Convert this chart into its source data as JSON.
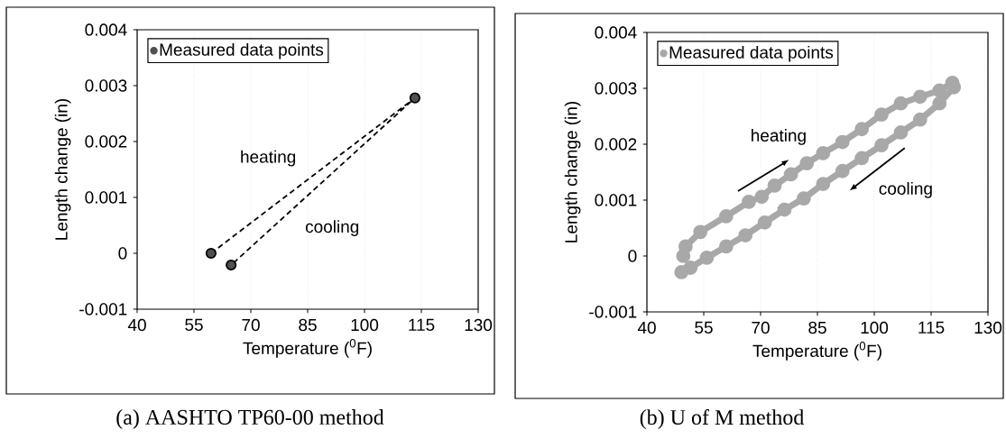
{
  "chart_data": [
    {
      "type": "line",
      "title": "(a) AASHTO TP60-00 method",
      "xlabel": "Temperature ($^{0}$F)",
      "ylabel": "Length change (in)",
      "line_style": "dashed",
      "marker": "circle",
      "grid": "x",
      "legend": "top left",
      "xlim": [
        40,
        130
      ],
      "ylim": [
        -0.001,
        0.004
      ],
      "xticks": [
        40,
        55,
        70,
        85,
        100,
        115,
        130
      ],
      "yticks": [
        -0.001,
        0,
        0.001,
        0.002,
        0.003,
        0.004
      ],
      "annotations": [
        "heating",
        "cooling"
      ],
      "series": [
        {
          "name": "Measured data points",
          "color": "#505050",
          "x": [
            59.5,
            113.3,
            64.8
          ],
          "values": [
            0,
            0.00278,
            -0.00021
          ]
        }
      ]
    },
    {
      "type": "line",
      "title": "(b) U of M method",
      "xlabel": "Temperature ($^{0}$F)",
      "ylabel": "Length change (in)",
      "line_style": "solid",
      "marker": "circle",
      "grid": "x",
      "legend": "top left",
      "xlim": [
        40,
        130
      ],
      "ylim": [
        -0.001,
        0.004
      ],
      "xticks": [
        40,
        55,
        70,
        85,
        100,
        115,
        130
      ],
      "yticks": [
        -0.001,
        0,
        0.001,
        0.002,
        0.003,
        0.004
      ],
      "annotations": [
        "heating",
        "cooling"
      ],
      "series": [
        {
          "name": "Measured data points",
          "color": "#a8a8a8",
          "x": [
            49.6,
            50.2,
            54.1,
            60.9,
            66.9,
            70.3,
            73.7,
            78,
            82.2,
            86.5,
            91.6,
            96.7,
            101.9,
            107,
            112.1,
            117.2,
            120.6,
            121,
            117.2,
            112.1,
            107,
            101.9,
            96.7,
            91.6,
            86.5,
            81.4,
            76.3,
            71.1,
            66,
            60.9,
            55.8,
            51.5,
            49.1
          ],
          "values": [
            0,
            0.00017,
            0.00043,
            0.00071,
            0.00097,
            0.00106,
            0.00126,
            0.00146,
            0.00166,
            0.00184,
            0.00204,
            0.00227,
            0.00253,
            0.00273,
            0.00285,
            0.00296,
            0.0031,
            0.00302,
            0.00273,
            0.00244,
            0.00221,
            0.00198,
            0.00175,
            0.00152,
            0.00129,
            0.00103,
            0.00083,
            0.0006,
            0.00037,
            0.00017,
            -3e-05,
            -0.00021,
            -0.00029
          ]
        }
      ]
    }
  ]
}
